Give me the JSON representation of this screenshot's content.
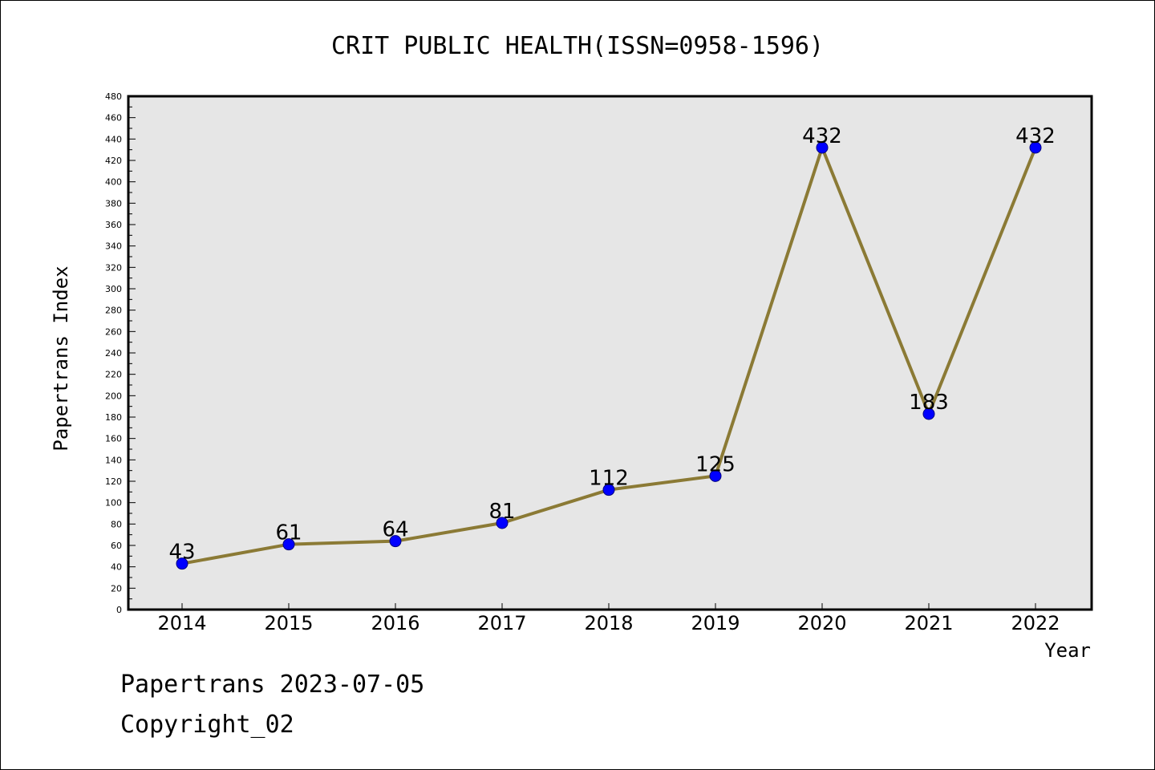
{
  "footer": {
    "source_line": "Papertrans 2023-07-05",
    "copyright_line": "Copyright_02"
  },
  "colors": {
    "plot_background": "#e6e6e6",
    "line": "#8b7a35",
    "marker_fill": "#0000ff",
    "marker_stroke": "#000080"
  },
  "chart_data": {
    "type": "line",
    "title": "CRIT PUBLIC HEALTH(ISSN=0958-1596)",
    "xlabel": "Year",
    "ylabel": "Papertrans Index",
    "ylim": [
      0,
      480
    ],
    "yticks": [
      0,
      20,
      40,
      60,
      80,
      100,
      120,
      140,
      160,
      180,
      200,
      220,
      240,
      260,
      280,
      300,
      320,
      340,
      360,
      380,
      400,
      420,
      440,
      460,
      480
    ],
    "categories": [
      "2014",
      "2015",
      "2016",
      "2017",
      "2018",
      "2019",
      "2020",
      "2021",
      "2022"
    ],
    "series": [
      {
        "values": [
          43,
          61,
          64,
          81,
          112,
          125,
          432,
          183,
          432
        ],
        "data_labels": [
          "43",
          "61",
          "64",
          "81",
          "112",
          "125",
          "432",
          "183",
          "432"
        ]
      }
    ],
    "grid": false,
    "legend": "none"
  }
}
